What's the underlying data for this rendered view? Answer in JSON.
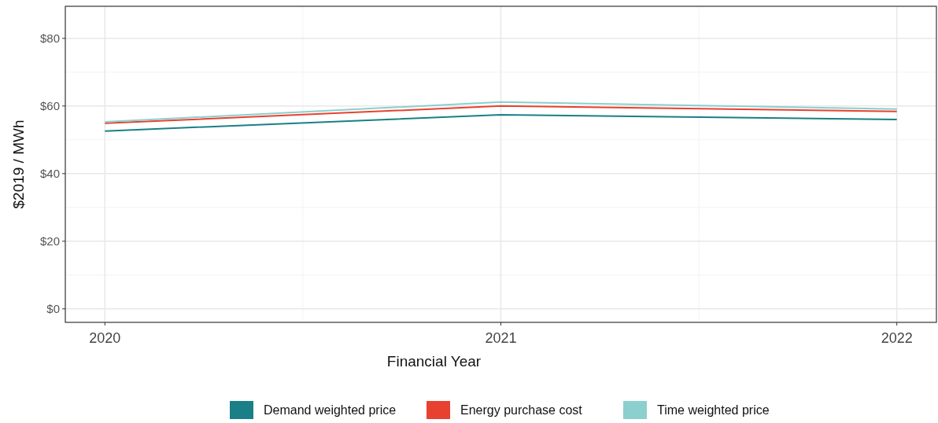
{
  "chart_data": {
    "type": "line",
    "xlabel": "Financial Year",
    "ylabel": "$2019 / MWh",
    "x": [
      2020,
      2021,
      2022
    ],
    "xlim": [
      2019.9,
      2022.1
    ],
    "xticks": [
      2020,
      2021,
      2022
    ],
    "ylim": [
      -4,
      89.5
    ],
    "yticks": [
      {
        "value": 0,
        "label": "$0"
      },
      {
        "value": 20,
        "label": "$20"
      },
      {
        "value": 40,
        "label": "$40"
      },
      {
        "value": 60,
        "label": "$60"
      },
      {
        "value": 80,
        "label": "$80"
      }
    ],
    "grid": true,
    "legend": "bottom",
    "series": [
      {
        "name": "Demand weighted price",
        "color": "#1a7f86",
        "values": [
          52.6,
          57.4,
          56.0
        ]
      },
      {
        "name": "Energy purchase cost",
        "color": "#e8412f",
        "values": [
          54.9,
          60.0,
          58.4
        ]
      },
      {
        "name": "Time weighted price",
        "color": "#8ccfcf",
        "values": [
          55.3,
          61.2,
          59.1
        ]
      }
    ]
  }
}
